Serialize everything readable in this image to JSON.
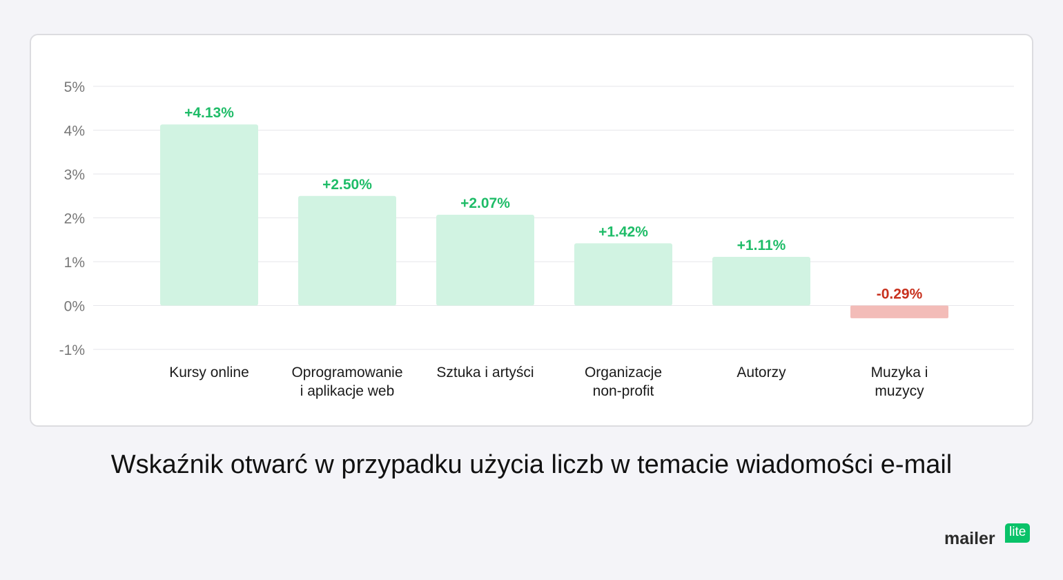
{
  "chart_data": {
    "type": "bar",
    "categories": [
      [
        "Kursy online"
      ],
      [
        "Oprogramowanie",
        "i aplikacje web"
      ],
      [
        "Sztuka i artyści"
      ],
      [
        "Organizacje",
        "non-profit"
      ],
      [
        "Autorzy"
      ],
      [
        "Muzyka i",
        "muzycy"
      ]
    ],
    "values": [
      4.13,
      2.5,
      2.07,
      1.42,
      1.11,
      -0.29
    ],
    "value_labels": [
      "+4.13%",
      "+2.50%",
      "+2.07%",
      "+1.42%",
      "+1.11%",
      "-0.29%"
    ],
    "yticks": [
      5,
      4,
      3,
      2,
      1,
      0,
      -1
    ],
    "ytick_labels": [
      "5%",
      "4%",
      "3%",
      "2%",
      "1%",
      "0%",
      "-1%"
    ],
    "ylim": [
      -1,
      5
    ],
    "grid": true,
    "colors": {
      "positive_bar": "#d1f3e2",
      "negative_bar": "#f3bcb8",
      "positive_label": "#1fbc68",
      "negative_label": "#c8311e",
      "grid": "#e6e6ea",
      "tick_label": "#777777",
      "category_label": "#1a1a1a"
    }
  },
  "caption": "Wskaźnik otwarć w przypadku użycia liczb w temacie wiadomości e-mail",
  "logo": {
    "word": "mailer",
    "badge": "lite"
  }
}
